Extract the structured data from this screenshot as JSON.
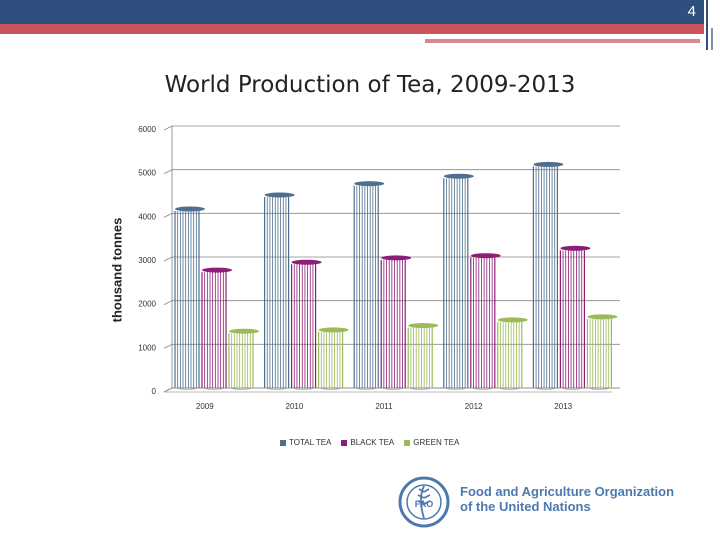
{
  "slide": {
    "number": "4"
  },
  "colors": {
    "total": "#4f6f8f",
    "black": "#8b1e77",
    "green": "#9bbb59",
    "header": "#2f4f7e",
    "accent": "#c9545a",
    "fao": "#4d78b0"
  },
  "chart_data": {
    "type": "bar",
    "title": "World Production of Tea, 2009-2013",
    "xlabel": "",
    "ylabel": "thousand tonnes",
    "categories": [
      "2009",
      "2010",
      "2011",
      "2012",
      "2013"
    ],
    "series": [
      {
        "name": "TOTAL TEA",
        "values": [
          4100,
          4420,
          4680,
          4850,
          5120
        ]
      },
      {
        "name": "BLACK TEA",
        "values": [
          2700,
          2880,
          2980,
          3030,
          3200
        ]
      },
      {
        "name": "GREEN TEA",
        "values": [
          1300,
          1330,
          1430,
          1560,
          1630
        ]
      }
    ],
    "ylim": [
      0,
      6000
    ],
    "yticks": [
      "0",
      "1000",
      "2000",
      "3000",
      "4000",
      "5000",
      "6000"
    ],
    "legend": "bottom",
    "grid": true
  },
  "footer": {
    "org_line1": "Food and Agriculture Organization",
    "org_line2": "of the United Nations",
    "logo_letters": "FAO"
  }
}
